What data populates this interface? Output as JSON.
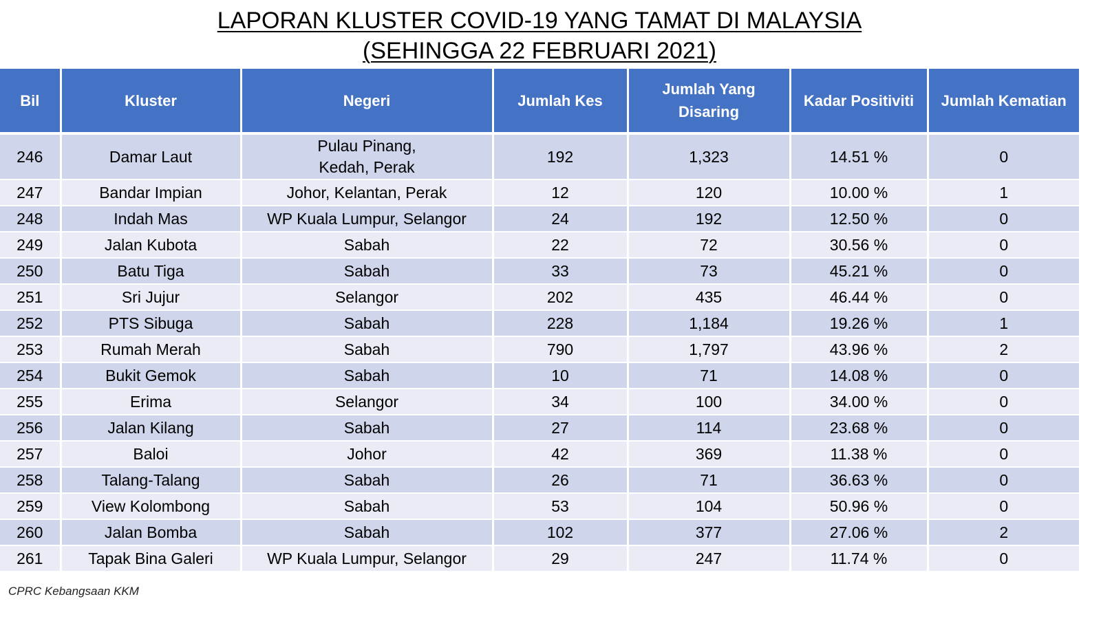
{
  "title": {
    "line1": "LAPORAN KLUSTER COVID-19 YANG TAMAT DI MALAYSIA",
    "line2": "(SEHINGGA  22 FEBRUARI 2021)"
  },
  "table": {
    "headers": [
      "Bil",
      "Kluster",
      "Negeri",
      "Jumlah Kes",
      "Jumlah Yang Disaring",
      "Kadar Positiviti",
      "Jumlah Kematian"
    ],
    "rows": [
      {
        "bil": "246",
        "kluster": "Damar Laut",
        "negeri_line1": "Pulau Pinang,",
        "negeri_line2": "Kedah, Perak",
        "kes": "192",
        "disaring": "1,323",
        "positiviti": "14.51 %",
        "kematian": "0"
      },
      {
        "bil": "247",
        "kluster": "Bandar Impian",
        "negeri": "Johor, Kelantan, Perak",
        "kes": "12",
        "disaring": "120",
        "positiviti": "10.00 %",
        "kematian": "1"
      },
      {
        "bil": "248",
        "kluster": "Indah Mas",
        "negeri": "WP Kuala Lumpur, Selangor",
        "kes": "24",
        "disaring": "192",
        "positiviti": "12.50 %",
        "kematian": "0"
      },
      {
        "bil": "249",
        "kluster": "Jalan Kubota",
        "negeri": "Sabah",
        "kes": "22",
        "disaring": "72",
        "positiviti": "30.56 %",
        "kematian": "0"
      },
      {
        "bil": "250",
        "kluster": "Batu Tiga",
        "negeri": "Sabah",
        "kes": "33",
        "disaring": "73",
        "positiviti": "45.21 %",
        "kematian": "0"
      },
      {
        "bil": "251",
        "kluster": "Sri Jujur",
        "negeri": "Selangor",
        "kes": "202",
        "disaring": "435",
        "positiviti": "46.44 %",
        "kematian": "0"
      },
      {
        "bil": "252",
        "kluster": "PTS Sibuga",
        "negeri": "Sabah",
        "kes": "228",
        "disaring": "1,184",
        "positiviti": "19.26 %",
        "kematian": "1"
      },
      {
        "bil": "253",
        "kluster": "Rumah Merah",
        "negeri": "Sabah",
        "kes": "790",
        "disaring": "1,797",
        "positiviti": "43.96 %",
        "kematian": "2"
      },
      {
        "bil": "254",
        "kluster": "Bukit Gemok",
        "negeri": "Sabah",
        "kes": "10",
        "disaring": "71",
        "positiviti": "14.08 %",
        "kematian": "0"
      },
      {
        "bil": "255",
        "kluster": "Erima",
        "negeri": "Selangor",
        "kes": "34",
        "disaring": "100",
        "positiviti": "34.00 %",
        "kematian": "0"
      },
      {
        "bil": "256",
        "kluster": "Jalan Kilang",
        "negeri": "Sabah",
        "kes": "27",
        "disaring": "114",
        "positiviti": "23.68 %",
        "kematian": "0"
      },
      {
        "bil": "257",
        "kluster": "Baloi",
        "negeri": "Johor",
        "kes": "42",
        "disaring": "369",
        "positiviti": "11.38 %",
        "kematian": "0"
      },
      {
        "bil": "258",
        "kluster": "Talang-Talang",
        "negeri": "Sabah",
        "kes": "26",
        "disaring": "71",
        "positiviti": "36.63 %",
        "kematian": "0"
      },
      {
        "bil": "259",
        "kluster": "View Kolombong",
        "negeri": "Sabah",
        "kes": "53",
        "disaring": "104",
        "positiviti": "50.96 %",
        "kematian": "0"
      },
      {
        "bil": "260",
        "kluster": "Jalan Bomba",
        "negeri": "Sabah",
        "kes": "102",
        "disaring": "377",
        "positiviti": "27.06 %",
        "kematian": "2"
      },
      {
        "bil": "261",
        "kluster": "Tapak Bina Galeri",
        "negeri": "WP Kuala Lumpur, Selangor",
        "kes": "29",
        "disaring": "247",
        "positiviti": "11.74 %",
        "kematian": "0"
      }
    ]
  },
  "footer": "CPRC Kebangsaan KKM",
  "colors": {
    "header_bg": "#4472c4",
    "row_dark": "#cfd5ea",
    "row_light": "#e9ebf5"
  }
}
